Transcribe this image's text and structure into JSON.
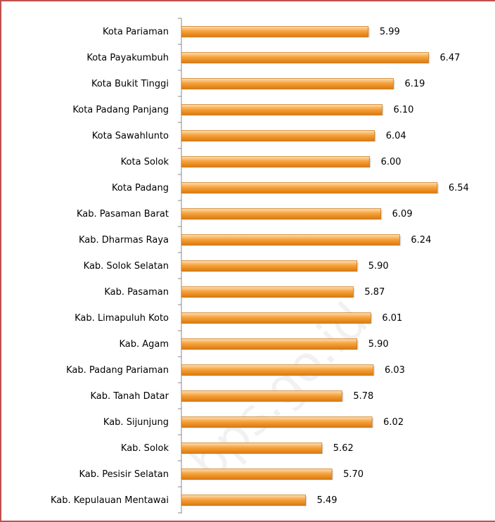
{
  "chart_data": {
    "type": "bar",
    "orientation": "horizontal",
    "categories": [
      "Kota Pariaman",
      "Kota Payakumbuh",
      "Kota Bukit Tinggi",
      "Kota Padang Panjang",
      "Kota Sawahlunto",
      "Kota Solok",
      "Kota Padang",
      "Kab. Pasaman Barat",
      "Kab. Dharmas Raya",
      "Kab. Solok Selatan",
      "Kab. Pasaman",
      "Kab. Limapuluh Koto",
      "Kab. Agam",
      "Kab. Padang Pariaman",
      "Kab. Tanah Datar",
      "Kab. Sijunjung",
      "Kab. Solok",
      "Kab. Pesisir Selatan",
      "Kab. Kepulauan Mentawai"
    ],
    "values": [
      5.99,
      6.47,
      6.19,
      6.1,
      6.04,
      6.0,
      6.54,
      6.09,
      6.24,
      5.9,
      5.87,
      6.01,
      5.9,
      6.03,
      5.78,
      6.02,
      5.62,
      5.7,
      5.49
    ],
    "value_labels": [
      "5.99",
      "6.47",
      "6.19",
      "6.10",
      "6.04",
      "6.00",
      "6.54",
      "6.09",
      "6.24",
      "5.90",
      "5.87",
      "6.01",
      "5.90",
      "6.03",
      "5.78",
      "6.02",
      "5.62",
      "5.70",
      "5.49"
    ],
    "color": "#f59a2c",
    "xlim": [
      4.5,
      7.0
    ],
    "watermark": "bps.go.id"
  }
}
